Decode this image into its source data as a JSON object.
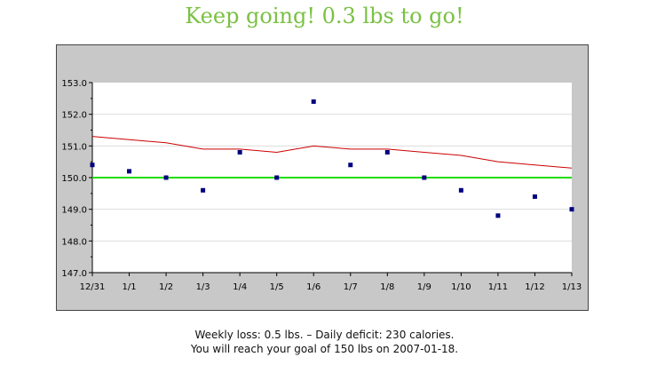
{
  "header": {
    "message": "Keep going! 0.3 lbs to go!"
  },
  "chart_data": {
    "type": "line",
    "categories": [
      "12/31",
      "1/1",
      "1/2",
      "1/3",
      "1/4",
      "1/5",
      "1/6",
      "1/7",
      "1/8",
      "1/9",
      "1/10",
      "1/11",
      "1/12",
      "1/13"
    ],
    "y_ticks": [
      "153.0",
      "152.0",
      "151.0",
      "150.0",
      "149.0",
      "148.0",
      "147.0"
    ],
    "ylim": [
      147,
      153
    ],
    "grid": true,
    "series": [
      {
        "kind": "scatter",
        "color": "#000080",
        "values": [
          150.4,
          150.2,
          150.0,
          149.6,
          150.8,
          150.0,
          152.4,
          150.4,
          150.8,
          150.0,
          149.6,
          148.8,
          149.4,
          149.0
        ]
      },
      {
        "kind": "line",
        "color": "#cc0000",
        "values": [
          151.3,
          151.2,
          151.1,
          150.9,
          150.9,
          150.8,
          151.0,
          150.9,
          150.9,
          150.8,
          150.7,
          150.5,
          150.4,
          150.3
        ]
      }
    ],
    "goal": {
      "value": 150.0,
      "color": "#22dd00"
    }
  },
  "footer": {
    "line1": "Weekly loss: 0.5 lbs. – Daily deficit: 230 calories.",
    "line2": "You will reach your goal of 150 lbs on 2007-01-18."
  }
}
